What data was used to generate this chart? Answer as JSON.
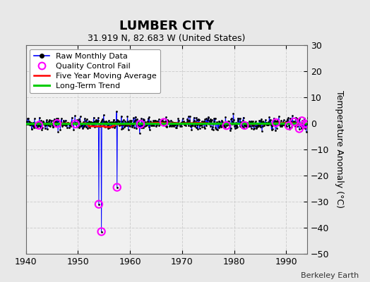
{
  "title": "LUMBER CITY",
  "subtitle": "31.919 N, 82.683 W (United States)",
  "ylabel": "Temperature Anomaly (°C)",
  "attribution": "Berkeley Earth",
  "xlim": [
    1940,
    1994
  ],
  "ylim": [
    -50,
    30
  ],
  "yticks": [
    -50,
    -40,
    -30,
    -20,
    -10,
    0,
    10,
    20,
    30
  ],
  "xticks": [
    1940,
    1950,
    1960,
    1970,
    1980,
    1990
  ],
  "fig_bg_color": "#e8e8e8",
  "plot_bg_color": "#f0f0f0",
  "grid_color": "#d0d0d0",
  "raw_line_color": "#0000ff",
  "raw_dot_color": "#000000",
  "qc_fail_color": "#ff00ff",
  "moving_avg_color": "#ff0000",
  "trend_color": "#00cc00",
  "seed": 42,
  "start_year": 1940,
  "end_year": 1995,
  "outlier_idx_1954a": 168,
  "outlier_val_1954a": -31.0,
  "outlier_idx_1954b": 174,
  "outlier_val_1954b": -41.5,
  "outlier_idx_1957": 210,
  "outlier_val_1957": -24.5,
  "qc_year_fracs": [
    1942.5,
    1946.0,
    1949.5,
    1954.0,
    1954.5,
    1957.5,
    1962.0,
    1966.5,
    1978.5,
    1982.0,
    1988.0,
    1990.5,
    1991.5,
    1992.5,
    1993.0,
    1993.5,
    1994.0
  ],
  "legend_labels": [
    "Raw Monthly Data",
    "Quality Control Fail",
    "Five Year Moving Average",
    "Long-Term Trend"
  ]
}
